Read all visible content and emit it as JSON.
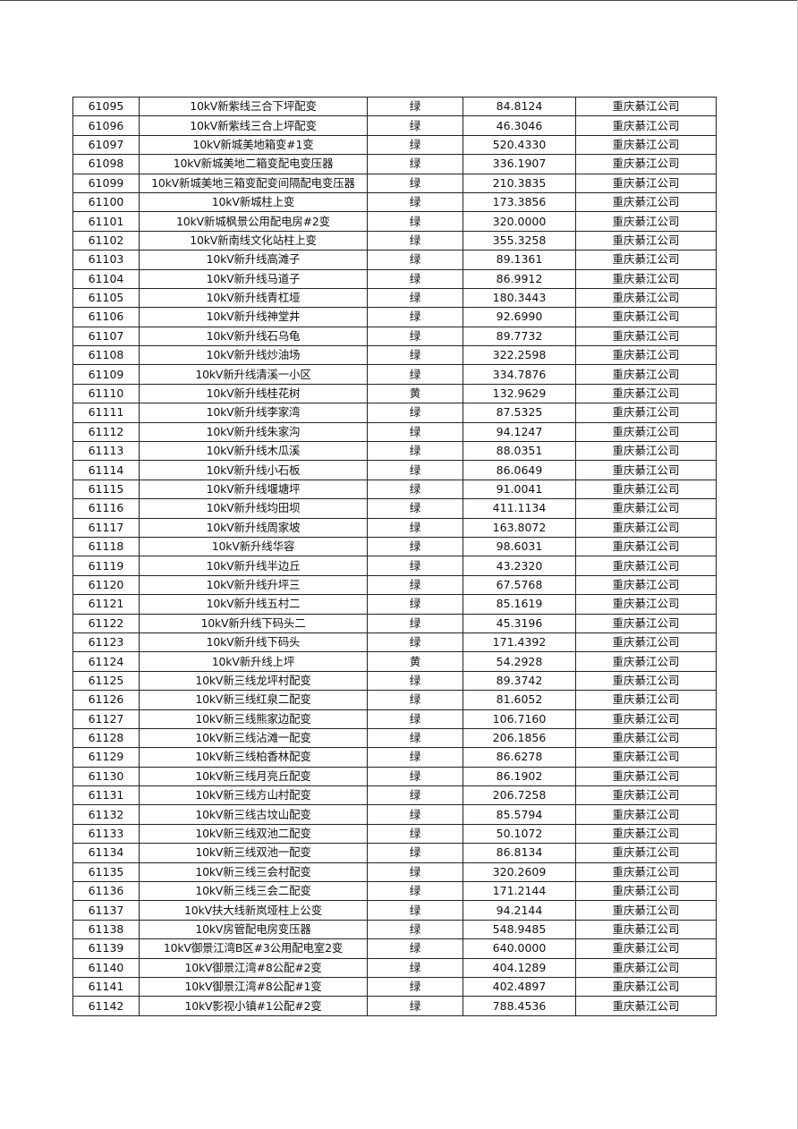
{
  "table": {
    "rows": [
      [
        "61095",
        "10kV新紫线三合下坪配变",
        "绿",
        "84.8124",
        "重庆綦江公司"
      ],
      [
        "61096",
        "10kV新紫线三合上坪配变",
        "绿",
        "46.3046",
        "重庆綦江公司"
      ],
      [
        "61097",
        "10kV新城美地箱变#1变",
        "绿",
        "520.4330",
        "重庆綦江公司"
      ],
      [
        "61098",
        "10kV新城美地二箱变配电变压器",
        "绿",
        "336.1907",
        "重庆綦江公司"
      ],
      [
        "61099",
        "10kV新城美地三箱变配变间隔配电变压器",
        "绿",
        "210.3835",
        "重庆綦江公司"
      ],
      [
        "61100",
        "10kV新城柱上变",
        "绿",
        "173.3856",
        "重庆綦江公司"
      ],
      [
        "61101",
        "10kV新城枫景公用配电房#2变",
        "绿",
        "320.0000",
        "重庆綦江公司"
      ],
      [
        "61102",
        "10kV新南线文化站柱上变",
        "绿",
        "355.3258",
        "重庆綦江公司"
      ],
      [
        "61103",
        "10kV新升线高滩子",
        "绿",
        "89.1361",
        "重庆綦江公司"
      ],
      [
        "61104",
        "10kV新升线马道子",
        "绿",
        "86.9912",
        "重庆綦江公司"
      ],
      [
        "61105",
        "10kV新升线青杠垭",
        "绿",
        "180.3443",
        "重庆綦江公司"
      ],
      [
        "61106",
        "10kV新升线神堂井",
        "绿",
        "92.6990",
        "重庆綦江公司"
      ],
      [
        "61107",
        "10kV新升线石乌龟",
        "绿",
        "89.7732",
        "重庆綦江公司"
      ],
      [
        "61108",
        "10kV新升线炒油场",
        "绿",
        "322.2598",
        "重庆綦江公司"
      ],
      [
        "61109",
        "10kV新升线清溪一小区",
        "绿",
        "334.7876",
        "重庆綦江公司"
      ],
      [
        "61110",
        "10kV新升线桂花树",
        "黄",
        "132.9629",
        "重庆綦江公司"
      ],
      [
        "61111",
        "10kV新升线李家湾",
        "绿",
        "87.5325",
        "重庆綦江公司"
      ],
      [
        "61112",
        "10kV新升线朱家沟",
        "绿",
        "94.1247",
        "重庆綦江公司"
      ],
      [
        "61113",
        "10kV新升线木瓜溪",
        "绿",
        "88.0351",
        "重庆綦江公司"
      ],
      [
        "61114",
        "10kV新升线小石板",
        "绿",
        "86.0649",
        "重庆綦江公司"
      ],
      [
        "61115",
        "10kV新升线堰塘坪",
        "绿",
        "91.0041",
        "重庆綦江公司"
      ],
      [
        "61116",
        "10kV新升线均田坝",
        "绿",
        "411.1134",
        "重庆綦江公司"
      ],
      [
        "61117",
        "10kV新升线周家坡",
        "绿",
        "163.8072",
        "重庆綦江公司"
      ],
      [
        "61118",
        "10kV新升线华容",
        "绿",
        "98.6031",
        "重庆綦江公司"
      ],
      [
        "61119",
        "10kV新升线半边丘",
        "绿",
        "43.2320",
        "重庆綦江公司"
      ],
      [
        "61120",
        "10kV新升线升坪三",
        "绿",
        "67.5768",
        "重庆綦江公司"
      ],
      [
        "61121",
        "10kV新升线五村二",
        "绿",
        "85.1619",
        "重庆綦江公司"
      ],
      [
        "61122",
        "10kV新升线下码头二",
        "绿",
        "45.3196",
        "重庆綦江公司"
      ],
      [
        "61123",
        "10kV新升线下码头",
        "绿",
        "171.4392",
        "重庆綦江公司"
      ],
      [
        "61124",
        "10kV新升线上坪",
        "黄",
        "54.2928",
        "重庆綦江公司"
      ],
      [
        "61125",
        "10kV新三线龙坪村配变",
        "绿",
        "89.3742",
        "重庆綦江公司"
      ],
      [
        "61126",
        "10kV新三线红泉二配变",
        "绿",
        "81.6052",
        "重庆綦江公司"
      ],
      [
        "61127",
        "10kV新三线熊家边配变",
        "绿",
        "106.7160",
        "重庆綦江公司"
      ],
      [
        "61128",
        "10kV新三线沾滩一配变",
        "绿",
        "206.1856",
        "重庆綦江公司"
      ],
      [
        "61129",
        "10kV新三线柏香林配变",
        "绿",
        "86.6278",
        "重庆綦江公司"
      ],
      [
        "61130",
        "10kV新三线月亮丘配变",
        "绿",
        "86.1902",
        "重庆綦江公司"
      ],
      [
        "61131",
        "10kV新三线方山村配变",
        "绿",
        "206.7258",
        "重庆綦江公司"
      ],
      [
        "61132",
        "10kV新三线古坟山配变",
        "绿",
        "85.5794",
        "重庆綦江公司"
      ],
      [
        "61133",
        "10kV新三线双池二配变",
        "绿",
        "50.1072",
        "重庆綦江公司"
      ],
      [
        "61134",
        "10kV新三线双池一配变",
        "绿",
        "86.8134",
        "重庆綦江公司"
      ],
      [
        "61135",
        "10kV新三线三会村配变",
        "绿",
        "320.2609",
        "重庆綦江公司"
      ],
      [
        "61136",
        "10kV新三线三会二配变",
        "绿",
        "171.2144",
        "重庆綦江公司"
      ],
      [
        "61137",
        "10kV扶大线新岚垭柱上公变",
        "绿",
        "94.2144",
        "重庆綦江公司"
      ],
      [
        "61138",
        "10kV房管配电房变压器",
        "绿",
        "548.9485",
        "重庆綦江公司"
      ],
      [
        "61139",
        "10kV御景江湾B区#3公用配电室2变",
        "绿",
        "640.0000",
        "重庆綦江公司"
      ],
      [
        "61140",
        "10kV御景江湾#8公配#2变",
        "绿",
        "404.1289",
        "重庆綦江公司"
      ],
      [
        "61141",
        "10kV御景江湾#8公配#1变",
        "绿",
        "402.4897",
        "重庆綦江公司"
      ],
      [
        "61142",
        "10kV影视小镇#1公配#2变",
        "绿",
        "788.4536",
        "重庆綦江公司"
      ]
    ]
  }
}
